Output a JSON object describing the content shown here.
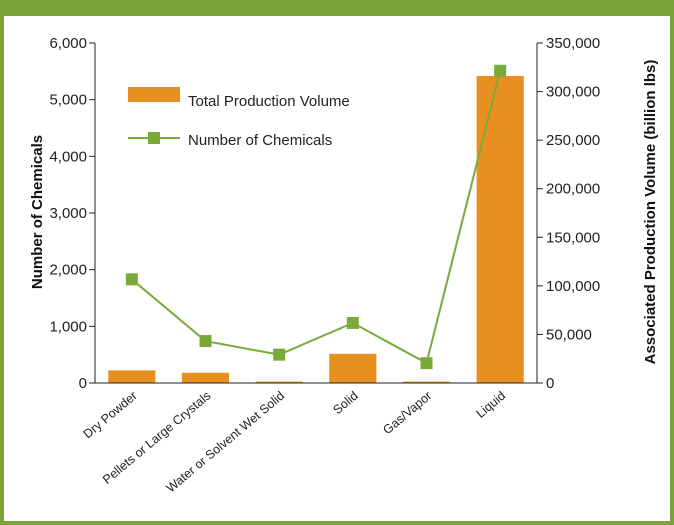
{
  "chart_data": {
    "type": "bar",
    "categories": [
      "Dry Powder",
      "Pellets or Large Crystals",
      "Water or Solvent Wet Solid",
      "Solid",
      "Gas/Vapor",
      "Liquid"
    ],
    "series": [
      {
        "name": "Total Production Volume",
        "type": "bar",
        "axis": "right",
        "values": [
          13000,
          10500,
          1500,
          30000,
          1500,
          316000
        ],
        "color": "#e8901f"
      },
      {
        "name": "Number of Chemicals",
        "type": "line",
        "axis": "left",
        "marker": "square",
        "values": [
          1830,
          740,
          500,
          1060,
          350,
          5510
        ],
        "color": "#7aab3a"
      }
    ],
    "ylabel": "Number of Chemicals",
    "y2label": "Associated Production Volume (billion lbs)",
    "ylim": [
      0,
      6000
    ],
    "y2lim": [
      0,
      350000
    ],
    "yticks": [
      "0",
      "1,000",
      "2,000",
      "3,000",
      "4,000",
      "5,000",
      "6,000"
    ],
    "y2ticks": [
      "0",
      "50,000",
      "100,000",
      "150,000",
      "200,000",
      "250,000",
      "300,000",
      "350,000"
    ],
    "legend_position": "top-left",
    "grid": false
  },
  "colors": {
    "frame": "#7aa33a",
    "bar": "#e8901f",
    "line": "#7aab3a"
  }
}
